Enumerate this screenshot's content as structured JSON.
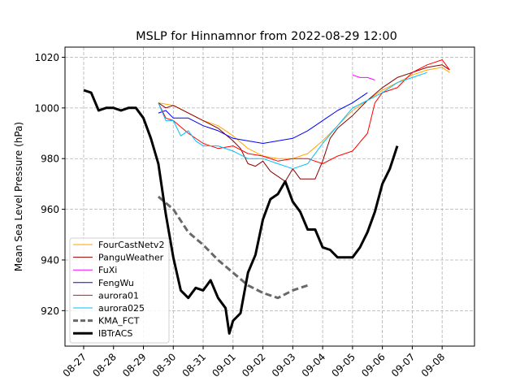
{
  "chart_data": {
    "type": "line",
    "title": "MSLP for Hinnamnor from 2022-08-29 12:00",
    "xlabel": "",
    "ylabel": "Mean Sea Level Pressure (hPa)",
    "xlim": [
      "2022-08-26T09:00",
      "2022-09-09T02:00"
    ],
    "ylim": [
      906,
      1024
    ],
    "grid": true,
    "legend_placement": "lower-left",
    "x_ticks": [
      {
        "date": "2022-08-27T00:00",
        "label": "08-27"
      },
      {
        "date": "2022-08-28T00:00",
        "label": "08-28"
      },
      {
        "date": "2022-08-29T00:00",
        "label": "08-29"
      },
      {
        "date": "2022-08-30T00:00",
        "label": "08-30"
      },
      {
        "date": "2022-08-31T00:00",
        "label": "08-31"
      },
      {
        "date": "2022-09-01T00:00",
        "label": "09-01"
      },
      {
        "date": "2022-09-02T00:00",
        "label": "09-02"
      },
      {
        "date": "2022-09-03T00:00",
        "label": "09-03"
      },
      {
        "date": "2022-09-04T00:00",
        "label": "09-04"
      },
      {
        "date": "2022-09-05T00:00",
        "label": "09-05"
      },
      {
        "date": "2022-09-06T00:00",
        "label": "09-06"
      },
      {
        "date": "2022-09-07T00:00",
        "label": "09-07"
      },
      {
        "date": "2022-09-08T00:00",
        "label": "09-08"
      }
    ],
    "y_ticks": [
      920,
      940,
      960,
      980,
      1000,
      1020
    ],
    "series": [
      {
        "name": "FourCastNetv2",
        "color": "#ffa500",
        "width": 1,
        "dash": false,
        "points": [
          [
            "2022-08-29T12:00",
            1002
          ],
          [
            "2022-08-30T00:00",
            1001
          ],
          [
            "2022-08-30T12:00",
            998
          ],
          [
            "2022-08-31T00:00",
            995
          ],
          [
            "2022-08-31T12:00",
            993
          ],
          [
            "2022-09-01T00:00",
            989
          ],
          [
            "2022-09-01T12:00",
            984
          ],
          [
            "2022-09-02T00:00",
            981
          ],
          [
            "2022-09-02T12:00",
            980
          ],
          [
            "2022-09-03T00:00",
            980
          ],
          [
            "2022-09-03T12:00",
            982
          ],
          [
            "2022-09-04T00:00",
            987
          ],
          [
            "2022-09-04T12:00",
            993
          ],
          [
            "2022-09-05T00:00",
            999
          ],
          [
            "2022-09-05T12:00",
            1003
          ],
          [
            "2022-09-06T00:00",
            1007
          ],
          [
            "2022-09-06T12:00",
            1010
          ],
          [
            "2022-09-07T00:00",
            1013
          ],
          [
            "2022-09-07T12:00",
            1015
          ],
          [
            "2022-09-08T00:00",
            1016
          ],
          [
            "2022-09-08T06:00",
            1014
          ]
        ]
      },
      {
        "name": "PanguWeather",
        "color": "#8b0000",
        "width": 1,
        "dash": false,
        "points": [
          [
            "2022-08-29T12:00",
            1002
          ],
          [
            "2022-08-29T18:00",
            1000
          ],
          [
            "2022-08-30T00:00",
            1001
          ],
          [
            "2022-08-30T12:00",
            998
          ],
          [
            "2022-08-31T00:00",
            995
          ],
          [
            "2022-08-31T12:00",
            992
          ],
          [
            "2022-09-01T00:00",
            987
          ],
          [
            "2022-09-01T06:00",
            984
          ],
          [
            "2022-09-01T12:00",
            978
          ],
          [
            "2022-09-01T18:00",
            977
          ],
          [
            "2022-09-02T00:00",
            979
          ],
          [
            "2022-09-02T06:00",
            975
          ],
          [
            "2022-09-02T18:00",
            971
          ],
          [
            "2022-09-03T00:00",
            976
          ],
          [
            "2022-09-03T06:00",
            972
          ],
          [
            "2022-09-03T18:00",
            972
          ],
          [
            "2022-09-04T00:00",
            979
          ],
          [
            "2022-09-04T06:00",
            988
          ],
          [
            "2022-09-04T12:00",
            992
          ],
          [
            "2022-09-05T00:00",
            997
          ],
          [
            "2022-09-05T12:00",
            1003
          ],
          [
            "2022-09-06T00:00",
            1008
          ],
          [
            "2022-09-06T12:00",
            1012
          ],
          [
            "2022-09-07T00:00",
            1014
          ],
          [
            "2022-09-07T12:00",
            1016
          ],
          [
            "2022-09-08T00:00",
            1017
          ],
          [
            "2022-09-08T06:00",
            1015
          ]
        ]
      },
      {
        "name": "FuXi",
        "color": "#ff00ff",
        "width": 1,
        "dash": false,
        "points": [
          [
            "2022-09-05T00:00",
            1013
          ],
          [
            "2022-09-05T06:00",
            1012
          ],
          [
            "2022-09-05T12:00",
            1012
          ],
          [
            "2022-09-05T18:00",
            1011
          ]
        ]
      },
      {
        "name": "FengWu",
        "color": "#0000ff",
        "width": 1,
        "dash": false,
        "points": [
          [
            "2022-08-29T12:00",
            998
          ],
          [
            "2022-08-29T18:00",
            999
          ],
          [
            "2022-08-30T00:00",
            996
          ],
          [
            "2022-08-30T12:00",
            996
          ],
          [
            "2022-08-31T00:00",
            993
          ],
          [
            "2022-08-31T12:00",
            991
          ],
          [
            "2022-09-01T00:00",
            988
          ],
          [
            "2022-09-01T12:00",
            987
          ],
          [
            "2022-09-02T00:00",
            986
          ],
          [
            "2022-09-02T12:00",
            987
          ],
          [
            "2022-09-03T00:00",
            988
          ],
          [
            "2022-09-03T12:00",
            991
          ],
          [
            "2022-09-04T00:00",
            995
          ],
          [
            "2022-09-04T12:00",
            999
          ],
          [
            "2022-09-05T00:00",
            1002
          ],
          [
            "2022-09-05T12:00",
            1006
          ]
        ]
      },
      {
        "name": "aurora01",
        "color": "#ff0000",
        "width": 1,
        "dash": false,
        "points": [
          [
            "2022-08-29T12:00",
            1002
          ],
          [
            "2022-08-29T18:00",
            996
          ],
          [
            "2022-08-30T00:00",
            995
          ],
          [
            "2022-08-30T12:00",
            990
          ],
          [
            "2022-08-31T00:00",
            986
          ],
          [
            "2022-08-31T12:00",
            984
          ],
          [
            "2022-09-01T00:00",
            985
          ],
          [
            "2022-09-01T12:00",
            982
          ],
          [
            "2022-09-02T00:00",
            981
          ],
          [
            "2022-09-02T12:00",
            979
          ],
          [
            "2022-09-03T00:00",
            980
          ],
          [
            "2022-09-03T12:00",
            980
          ],
          [
            "2022-09-04T00:00",
            978
          ],
          [
            "2022-09-04T12:00",
            981
          ],
          [
            "2022-09-05T00:00",
            983
          ],
          [
            "2022-09-05T12:00",
            990
          ],
          [
            "2022-09-05T18:00",
            1002
          ],
          [
            "2022-09-06T00:00",
            1006
          ],
          [
            "2022-09-06T12:00",
            1008
          ],
          [
            "2022-09-07T00:00",
            1014
          ],
          [
            "2022-09-07T12:00",
            1017
          ],
          [
            "2022-09-08T00:00",
            1019
          ],
          [
            "2022-09-08T06:00",
            1015
          ]
        ]
      },
      {
        "name": "aurora025",
        "color": "#00bfff",
        "width": 1,
        "dash": false,
        "points": [
          [
            "2022-08-29T12:00",
            1002
          ],
          [
            "2022-08-29T18:00",
            995
          ],
          [
            "2022-08-30T00:00",
            995
          ],
          [
            "2022-08-30T06:00",
            989
          ],
          [
            "2022-08-30T12:00",
            991
          ],
          [
            "2022-08-30T18:00",
            987
          ],
          [
            "2022-08-31T00:00",
            985
          ],
          [
            "2022-08-31T12:00",
            985
          ],
          [
            "2022-09-01T00:00",
            983
          ],
          [
            "2022-09-01T12:00",
            980
          ],
          [
            "2022-09-02T00:00",
            980
          ],
          [
            "2022-09-02T12:00",
            978
          ],
          [
            "2022-09-03T00:00",
            976
          ],
          [
            "2022-09-03T12:00",
            978
          ],
          [
            "2022-09-04T00:00",
            986
          ],
          [
            "2022-09-04T12:00",
            993
          ],
          [
            "2022-09-05T00:00",
            1000
          ],
          [
            "2022-09-05T12:00",
            1003
          ],
          [
            "2022-09-06T00:00",
            1006
          ],
          [
            "2022-09-06T12:00",
            1010
          ],
          [
            "2022-09-07T00:00",
            1012
          ],
          [
            "2022-09-07T12:00",
            1014
          ]
        ]
      },
      {
        "name": "KMA_FCT",
        "color": "#696969",
        "width": 3,
        "dash": true,
        "points": [
          [
            "2022-08-29T12:00",
            965
          ],
          [
            "2022-08-30T00:00",
            960
          ],
          [
            "2022-08-30T12:00",
            951
          ],
          [
            "2022-08-31T00:00",
            946
          ],
          [
            "2022-08-31T12:00",
            940
          ],
          [
            "2022-09-01T00:00",
            935
          ],
          [
            "2022-09-01T12:00",
            930
          ],
          [
            "2022-09-02T00:00",
            927
          ],
          [
            "2022-09-02T12:00",
            925
          ],
          [
            "2022-09-03T00:00",
            928
          ],
          [
            "2022-09-03T12:00",
            930
          ]
        ]
      },
      {
        "name": "IBTrACS",
        "color": "#000000",
        "width": 3,
        "dash": false,
        "points": [
          [
            "2022-08-27T00:00",
            1007
          ],
          [
            "2022-08-27T06:00",
            1006
          ],
          [
            "2022-08-27T12:00",
            999
          ],
          [
            "2022-08-27T18:00",
            1000
          ],
          [
            "2022-08-28T00:00",
            1000
          ],
          [
            "2022-08-28T06:00",
            999
          ],
          [
            "2022-08-28T12:00",
            1000
          ],
          [
            "2022-08-28T18:00",
            1000
          ],
          [
            "2022-08-29T00:00",
            996
          ],
          [
            "2022-08-29T06:00",
            988
          ],
          [
            "2022-08-29T12:00",
            978
          ],
          [
            "2022-08-29T18:00",
            958
          ],
          [
            "2022-08-30T00:00",
            941
          ],
          [
            "2022-08-30T06:00",
            928
          ],
          [
            "2022-08-30T12:00",
            925
          ],
          [
            "2022-08-30T18:00",
            929
          ],
          [
            "2022-08-31T00:00",
            928
          ],
          [
            "2022-08-31T06:00",
            932
          ],
          [
            "2022-08-31T12:00",
            925
          ],
          [
            "2022-08-31T18:00",
            921
          ],
          [
            "2022-08-31T21:00",
            911
          ],
          [
            "2022-09-01T00:00",
            916
          ],
          [
            "2022-09-01T06:00",
            919
          ],
          [
            "2022-09-01T12:00",
            935
          ],
          [
            "2022-09-01T18:00",
            942
          ],
          [
            "2022-09-02T00:00",
            956
          ],
          [
            "2022-09-02T06:00",
            964
          ],
          [
            "2022-09-02T12:00",
            966
          ],
          [
            "2022-09-02T18:00",
            971
          ],
          [
            "2022-09-03T00:00",
            963
          ],
          [
            "2022-09-03T06:00",
            959
          ],
          [
            "2022-09-03T12:00",
            952
          ],
          [
            "2022-09-03T18:00",
            952
          ],
          [
            "2022-09-04T00:00",
            945
          ],
          [
            "2022-09-04T06:00",
            944
          ],
          [
            "2022-09-04T12:00",
            941
          ],
          [
            "2022-09-04T18:00",
            941
          ],
          [
            "2022-09-05T00:00",
            941
          ],
          [
            "2022-09-05T06:00",
            945
          ],
          [
            "2022-09-05T12:00",
            951
          ],
          [
            "2022-09-05T18:00",
            959
          ],
          [
            "2022-09-06T00:00",
            970
          ],
          [
            "2022-09-06T06:00",
            976
          ],
          [
            "2022-09-06T12:00",
            985
          ]
        ]
      }
    ]
  }
}
